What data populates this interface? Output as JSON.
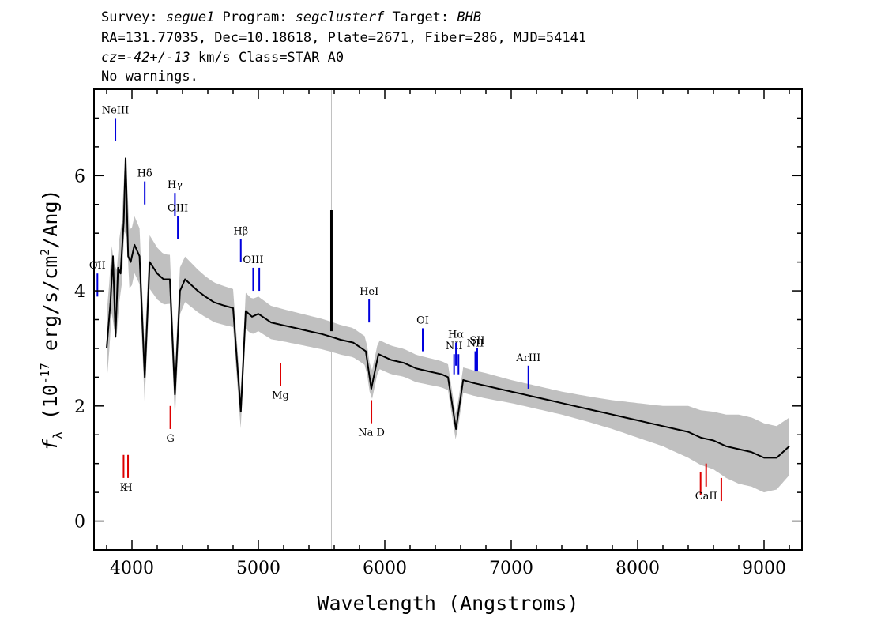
{
  "header": {
    "line1": {
      "survey_label": "Survey: ",
      "survey": "segue1",
      "program_label": " Program: ",
      "program": "segclusterf",
      "target_label": " Target: ",
      "target": "BHB"
    },
    "line2": "RA=131.77035, Dec=10.18618, Plate=2671, Fiber=286, MJD=54141",
    "line3": {
      "cz_label": "cz=",
      "cz": "-42+/-13",
      "rest": " km/s Class=STAR A0"
    },
    "line4": "No warnings."
  },
  "chart_data": {
    "type": "line",
    "xlabel": "Wavelength (Angstroms)",
    "ylabel": "f_λ (10^-17 erg/s/cm^2/Ang)",
    "xlim": [
      3700,
      9300
    ],
    "ylim": [
      -0.5,
      7.5
    ],
    "xticks": [
      4000,
      5000,
      6000,
      7000,
      8000,
      9000
    ],
    "yticks": [
      0,
      2,
      4,
      6
    ],
    "series": [
      {
        "role": "flux",
        "color": "#000000",
        "x": [
          3800,
          3830,
          3850,
          3870,
          3890,
          3910,
          3935,
          3950,
          3970,
          3990,
          4020,
          4060,
          4101,
          4140,
          4200,
          4250,
          4300,
          4340,
          4380,
          4420,
          4470,
          4520,
          4580,
          4650,
          4720,
          4800,
          4861,
          4900,
          4950,
          5000,
          5100,
          5200,
          5300,
          5400,
          5500,
          5580,
          5650,
          5750,
          5850,
          5893,
          5950,
          6050,
          6150,
          6250,
          6350,
          6450,
          6500,
          6563,
          6620,
          6700,
          6800,
          6900,
          7000,
          7100,
          7200,
          7300,
          7400,
          7500,
          7600,
          7700,
          7800,
          7900,
          8000,
          8100,
          8200,
          8300,
          8400,
          8500,
          8600,
          8700,
          8800,
          8900,
          9000,
          9100,
          9200
        ],
        "y": [
          3.0,
          3.8,
          4.6,
          3.2,
          4.4,
          4.3,
          5.2,
          6.3,
          4.6,
          4.5,
          4.8,
          4.6,
          2.5,
          4.5,
          4.3,
          4.2,
          4.2,
          2.2,
          4.0,
          4.2,
          4.1,
          4.0,
          3.9,
          3.8,
          3.75,
          3.7,
          1.9,
          3.65,
          3.55,
          3.6,
          3.45,
          3.4,
          3.35,
          3.3,
          3.25,
          3.2,
          3.15,
          3.1,
          2.95,
          2.3,
          2.9,
          2.8,
          2.75,
          2.65,
          2.6,
          2.55,
          2.5,
          1.6,
          2.45,
          2.4,
          2.35,
          2.3,
          2.25,
          2.2,
          2.15,
          2.1,
          2.05,
          2.0,
          1.95,
          1.9,
          1.85,
          1.8,
          1.75,
          1.7,
          1.65,
          1.6,
          1.55,
          1.45,
          1.4,
          1.3,
          1.25,
          1.2,
          1.1,
          1.1,
          1.3
        ]
      },
      {
        "role": "error band",
        "color": "#c0c0c0",
        "x": [
          3800,
          3900,
          4000,
          4200,
          4400,
          4600,
          4800,
          5000,
          5200,
          5400,
          5600,
          5800,
          6000,
          6200,
          6400,
          6600,
          6800,
          7000,
          7200,
          7400,
          7600,
          7800,
          8000,
          8200,
          8400,
          8600,
          8800,
          9000,
          9200
        ],
        "y": [
          0.6,
          0.55,
          0.5,
          0.45,
          0.4,
          0.35,
          0.33,
          0.3,
          0.28,
          0.27,
          0.26,
          0.25,
          0.25,
          0.24,
          0.23,
          0.22,
          0.22,
          0.2,
          0.2,
          0.2,
          0.22,
          0.25,
          0.3,
          0.35,
          0.45,
          0.5,
          0.6,
          0.6,
          0.5
        ]
      }
    ],
    "spike": {
      "x": 5578,
      "y_low": 3.3,
      "y_high": 5.4
    },
    "sky_line": {
      "x": 5578,
      "color": "#c0c0c0"
    },
    "emission_lines": [
      {
        "label": "OII",
        "x": 3727,
        "y0": 3.9,
        "y1": 4.3
      },
      {
        "label": "NeIII",
        "x": 3869,
        "y0": 6.6,
        "y1": 7.0
      },
      {
        "label": "Hδ",
        "x": 4101,
        "y0": 5.5,
        "y1": 5.9
      },
      {
        "label": "Hγ",
        "x": 4340,
        "y0": 5.3,
        "y1": 5.7
      },
      {
        "label": "OIII",
        "x": 4363,
        "y0": 4.9,
        "y1": 5.3
      },
      {
        "label": "Hβ",
        "x": 4861,
        "y0": 4.5,
        "y1": 4.9
      },
      {
        "label": "OIII",
        "x": 4959,
        "y0": 4.0,
        "y1": 4.4
      },
      {
        "label": "",
        "x": 5007,
        "y0": 4.0,
        "y1": 4.4
      },
      {
        "label": "HeI",
        "x": 5876,
        "y0": 3.45,
        "y1": 3.85
      },
      {
        "label": "OI",
        "x": 6300,
        "y0": 2.95,
        "y1": 3.35
      },
      {
        "label": "NII",
        "x": 6548,
        "y0": 2.55,
        "y1": 2.9
      },
      {
        "label": "Hα",
        "x": 6563,
        "y0": 2.7,
        "y1": 3.1
      },
      {
        "label": "",
        "x": 6583,
        "y0": 2.55,
        "y1": 2.9
      },
      {
        "label": "NII",
        "x": 6716,
        "y0": 2.6,
        "y1": 2.95
      },
      {
        "label": "SII",
        "x": 6731,
        "y0": 2.6,
        "y1": 3.0
      },
      {
        "label": "ArIII",
        "x": 7136,
        "y0": 2.3,
        "y1": 2.7
      }
    ],
    "absorption_lines": [
      {
        "label": "K",
        "x": 3934,
        "y0": 0.75,
        "y1": 1.15
      },
      {
        "label": "H",
        "x": 3969,
        "y0": 0.75,
        "y1": 1.15
      },
      {
        "label": "G",
        "x": 4304,
        "y0": 1.6,
        "y1": 2.0
      },
      {
        "label": "Mg",
        "x": 5175,
        "y0": 2.35,
        "y1": 2.75
      },
      {
        "label": "Na D",
        "x": 5894,
        "y0": 1.7,
        "y1": 2.1
      },
      {
        "label": "",
        "x": 8498,
        "y0": 0.45,
        "y1": 0.85
      },
      {
        "label": "CaII",
        "x": 8542,
        "y0": 0.6,
        "y1": 1.0
      },
      {
        "label": "",
        "x": 8662,
        "y0": 0.35,
        "y1": 0.75
      }
    ],
    "colors": {
      "emission": "#0000dd",
      "absorption": "#dd0000",
      "flux": "#000000",
      "error": "#c0c0c0"
    }
  }
}
